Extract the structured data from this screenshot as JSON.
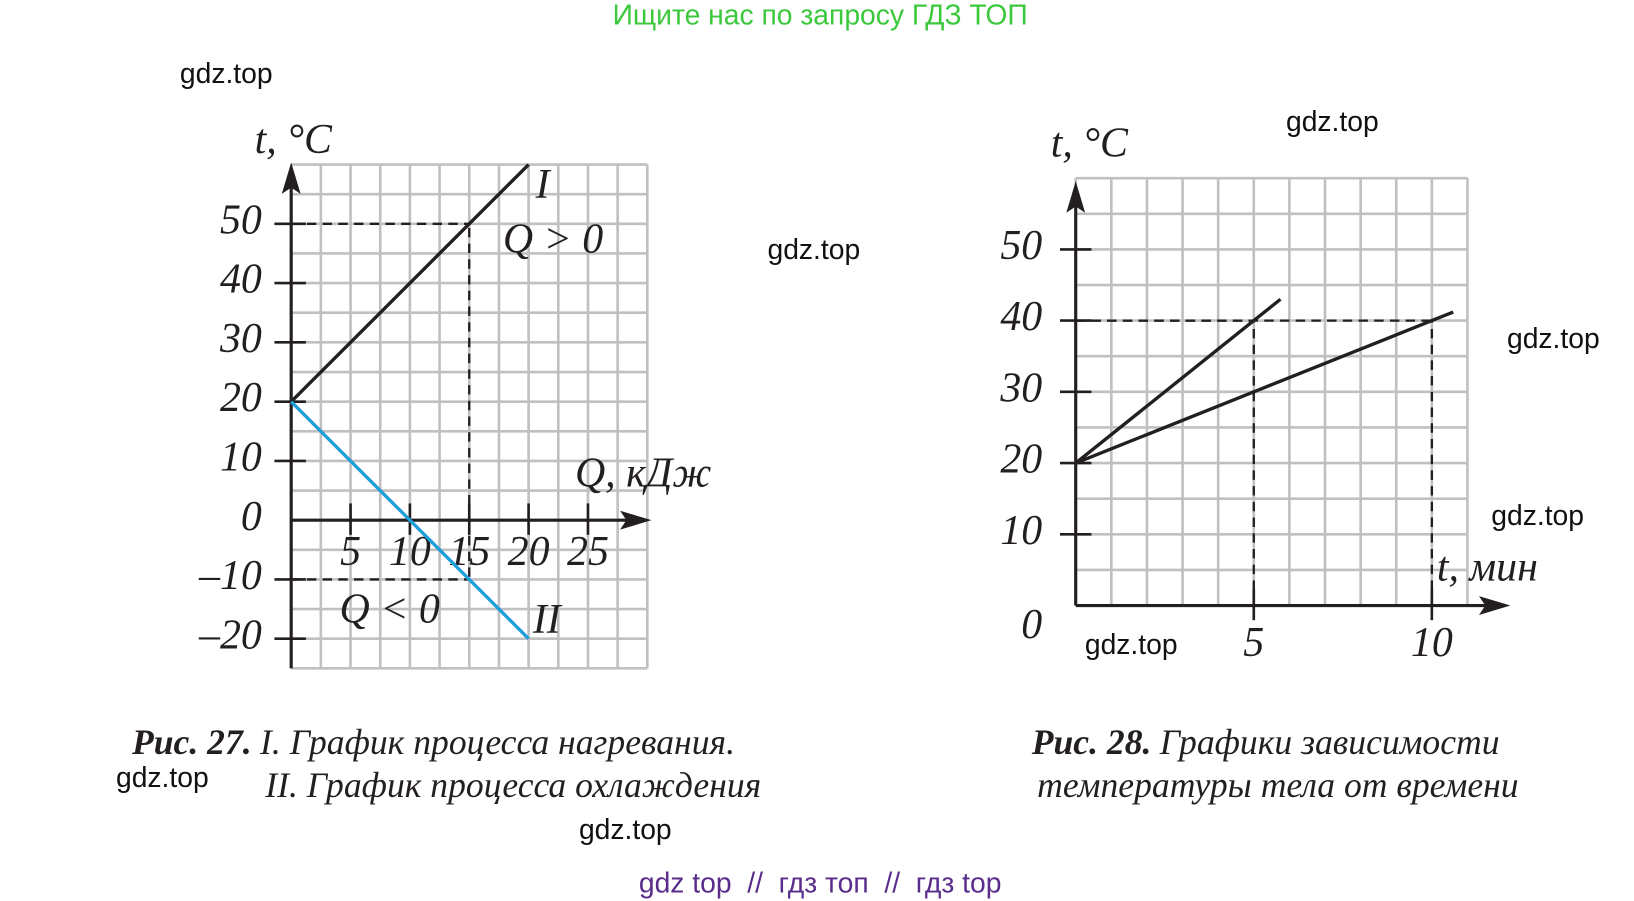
{
  "header": "Ищите нас по запросу ГДЗ ТОП",
  "watermarks": [
    "gdz.top",
    "gdz.top",
    "gdz.top",
    "gdz.top",
    "gdz.top",
    "gdz.top",
    "gdz.top",
    "gdz.top"
  ],
  "footer": "gdz top  //  гдз топ  //  гдз top",
  "chart_data": [
    {
      "type": "line",
      "ylabel": "t, °C",
      "xlabel": "Q, кДж",
      "caption_label": "Рис. 27.",
      "caption": [
        "I. График процесса нагревания.",
        "II. График процесса охлаждения"
      ],
      "xlim": [
        0,
        30
      ],
      "ylim": [
        -25,
        60
      ],
      "xticks": [
        5,
        10,
        15,
        20,
        25
      ],
      "yticks": [
        {
          "value": -20,
          "label": "–20"
        },
        {
          "value": -10,
          "label": "–10"
        },
        0,
        10,
        20,
        30,
        40,
        50
      ],
      "grid": true,
      "grid_step": [
        2.5,
        5
      ],
      "series": [
        {
          "name": "I",
          "color": "#231f20",
          "x": [
            0,
            20
          ],
          "values": [
            20,
            60
          ]
        },
        {
          "name": "II",
          "color": "#1e9fdb",
          "x": [
            0,
            20
          ],
          "values": [
            20,
            -20
          ]
        }
      ],
      "annotations": [
        "Q > 0",
        "Q < 0"
      ],
      "guides": [
        {
          "x": 15,
          "y": 50
        },
        {
          "x": 15,
          "y": -10
        }
      ]
    },
    {
      "type": "line",
      "ylabel": "t, °C",
      "xlabel": "t, мин",
      "caption_label": "Рис. 28.",
      "caption": [
        "Графики зависимости",
        "температуры тела от времени"
      ],
      "xlim": [
        0,
        11
      ],
      "ylim": [
        0,
        60
      ],
      "xticks": [
        5,
        10
      ],
      "yticks": [
        0,
        10,
        20,
        30,
        40,
        50
      ],
      "grid": true,
      "grid_step": [
        1,
        5
      ],
      "series": [
        {
          "color": "#231f20",
          "x": [
            0,
            5,
            5.75
          ],
          "values": [
            20,
            40,
            43
          ]
        },
        {
          "color": "#231f20",
          "x": [
            0,
            10,
            10.6
          ],
          "values": [
            20,
            40,
            41.2
          ]
        }
      ],
      "guides": [
        {
          "x": 5,
          "y": 40
        },
        {
          "x": 10,
          "y": 40
        }
      ]
    }
  ]
}
